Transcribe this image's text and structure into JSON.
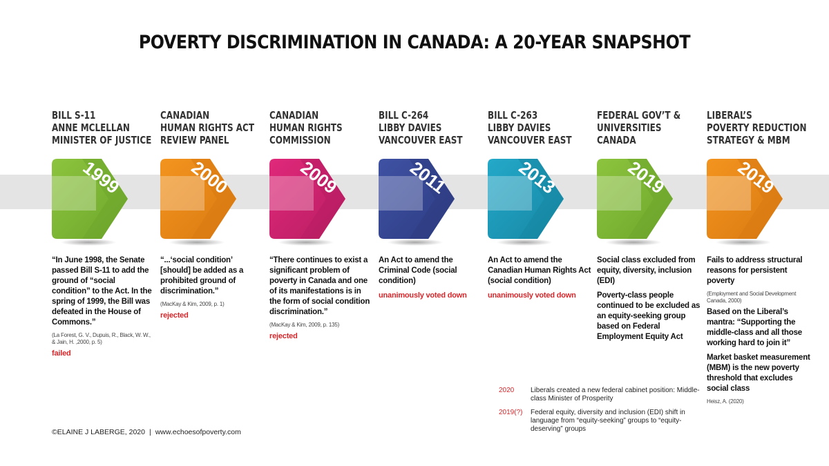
{
  "title": "POVERTY DISCRIMINATION IN CANADA: A 20-YEAR SNAPSHOT",
  "entries": [
    {
      "year": "1999",
      "color": "#8cc43e",
      "dark": "#6ea62c",
      "heading": [
        "BILL S-11",
        "ANNE MCLELLAN",
        "MINISTER OF JUSTICE"
      ],
      "body": [
        "“In June 1998, the Senate passed Bill S-11 to add the ground of “social condition” to the Act. In the spring of 1999, the Bill was defeated in the House of Commons.”"
      ],
      "cite": "(La Forest, G. V., Dupuis, R., Black, W. W., & Jain, H. ,2000,  p. 5)",
      "status": "failed"
    },
    {
      "year": "2000",
      "color": "#f3941f",
      "dark": "#d97a12",
      "heading": [
        "CANADIAN",
        "HUMAN RIGHTS ACT",
        "REVIEW PANEL"
      ],
      "body": [
        "“...‘social condition’ [should] be added as a prohibited ground of discrimination.”"
      ],
      "cite": "(MacKay & Kim, 2009, p. 1)",
      "status": "rejected"
    },
    {
      "year": "2009",
      "color": "#e0287a",
      "dark": "#b81e62",
      "heading": [
        "CANADIAN",
        "HUMAN RIGHTS",
        "COMMISSION"
      ],
      "body": [
        "“There continues to exist a significant problem of poverty in Canada and one of its manifestations is in the form of social condition discrimination.”"
      ],
      "cite": "(MacKay & Kim, 2009, p. 135)",
      "status": "rejected"
    },
    {
      "year": "2011",
      "color": "#3f51a3",
      "dark": "#2d3c82",
      "heading": [
        "BILL C-264",
        "LIBBY DAVIES",
        "VANCOUVER EAST"
      ],
      "body": [
        "An Act to amend the Criminal Code (social condition)"
      ],
      "cite": "",
      "status": "unanimously voted down"
    },
    {
      "year": "2013",
      "color": "#24a9c9",
      "dark": "#1686a3",
      "heading": [
        "BILL C-263",
        "LIBBY DAVIES",
        "VANCOUVER EAST"
      ],
      "body": [
        "An Act to amend the Canadian Human Rights Act (social condition)"
      ],
      "cite": "",
      "status": "unanimously voted down"
    },
    {
      "year": "2019",
      "color": "#8cc43e",
      "dark": "#6ea62c",
      "heading": [
        "FEDERAL GOV’T &",
        "UNIVERSITIES",
        "CANADA"
      ],
      "body": [
        "Social class excluded from equity, diversity, inclusion (EDI)",
        "Poverty-class people continued to be excluded as an equity-seeking group based on Federal Employment Equity Act"
      ],
      "cite": "",
      "status": ""
    },
    {
      "year": "2019",
      "color": "#f3941f",
      "dark": "#d97a12",
      "heading": [
        "LIBERAL’S",
        "POVERTY REDUCTION",
        "STRATEGY & MBM"
      ],
      "body": [
        "Fails to address structural reasons for persistent poverty"
      ],
      "cite": "(Employment and Social Development Canada, 2000)",
      "body2": [
        "Based on the Liberal’s mantra: “Supporting the middle-class and all those working hard to join it”",
        "Market basket measurement (MBM) is the new poverty threshold that excludes social class"
      ],
      "cite2": "Heisz, A. (2020)",
      "status": ""
    }
  ],
  "notes": [
    {
      "year": "2020",
      "text": "Liberals created a new federal cabinet position: Middle-class Minister of Prosperity"
    },
    {
      "year": "2019(?)",
      "text": "Federal equity, diversity and inclusion (EDI) shift in language from “equity-seeking” groups to “equity-deserving” groups"
    }
  ],
  "footer": {
    "copyright": "©ELAINE J LABERGE, 2020",
    "separator": "|",
    "url": "www.echoesofpoverty.com"
  }
}
